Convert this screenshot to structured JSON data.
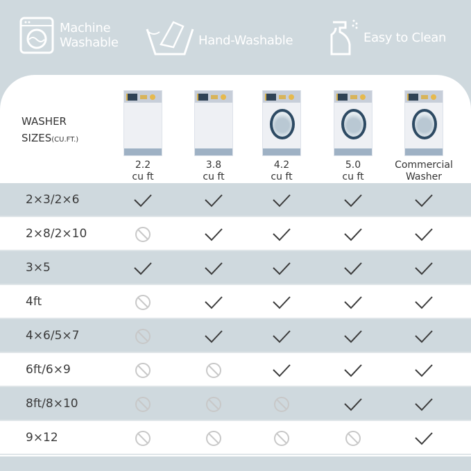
{
  "features": [
    {
      "icon": "washing-machine-icon",
      "label_lines": [
        "Machine",
        "Washable"
      ]
    },
    {
      "icon": "hand-wash-icon",
      "label_lines": [
        "Hand-Washable"
      ]
    },
    {
      "icon": "spray-bottle-icon",
      "label_lines": [
        "Easy to Clean"
      ]
    }
  ],
  "table": {
    "header_title": "WASHER",
    "header_title_line2": "SIZES",
    "header_unit": "(CU.FT.)",
    "columns": [
      {
        "line1": "2.2",
        "line2": "cu ft",
        "door": false
      },
      {
        "line1": "3.8",
        "line2": "cu ft",
        "door": false
      },
      {
        "line1": "4.2",
        "line2": "cu ft",
        "door": true
      },
      {
        "line1": "5.0",
        "line2": "cu ft",
        "door": true
      },
      {
        "line1": "Commercial",
        "line2": "Washer",
        "door": true
      }
    ],
    "rows": [
      {
        "size": "2×3/2×6",
        "fits": [
          true,
          true,
          true,
          true,
          true
        ]
      },
      {
        "size": "2×8/2×10",
        "fits": [
          false,
          true,
          true,
          true,
          true
        ]
      },
      {
        "size": "3×5",
        "fits": [
          true,
          true,
          true,
          true,
          true
        ]
      },
      {
        "size": "4ft",
        "fits": [
          false,
          true,
          true,
          true,
          true
        ]
      },
      {
        "size": "4×6/5×7",
        "fits": [
          false,
          true,
          true,
          true,
          true
        ]
      },
      {
        "size": "6ft/6×9",
        "fits": [
          false,
          false,
          true,
          true,
          true
        ]
      },
      {
        "size": "8ft/8×10",
        "fits": [
          false,
          false,
          false,
          true,
          true
        ]
      },
      {
        "size": "9×12",
        "fits": [
          false,
          false,
          false,
          false,
          true
        ]
      }
    ]
  },
  "colors": {
    "background": "#cfd9de",
    "check": "#3a3a3a",
    "not_allowed": "#c8c8c8"
  }
}
